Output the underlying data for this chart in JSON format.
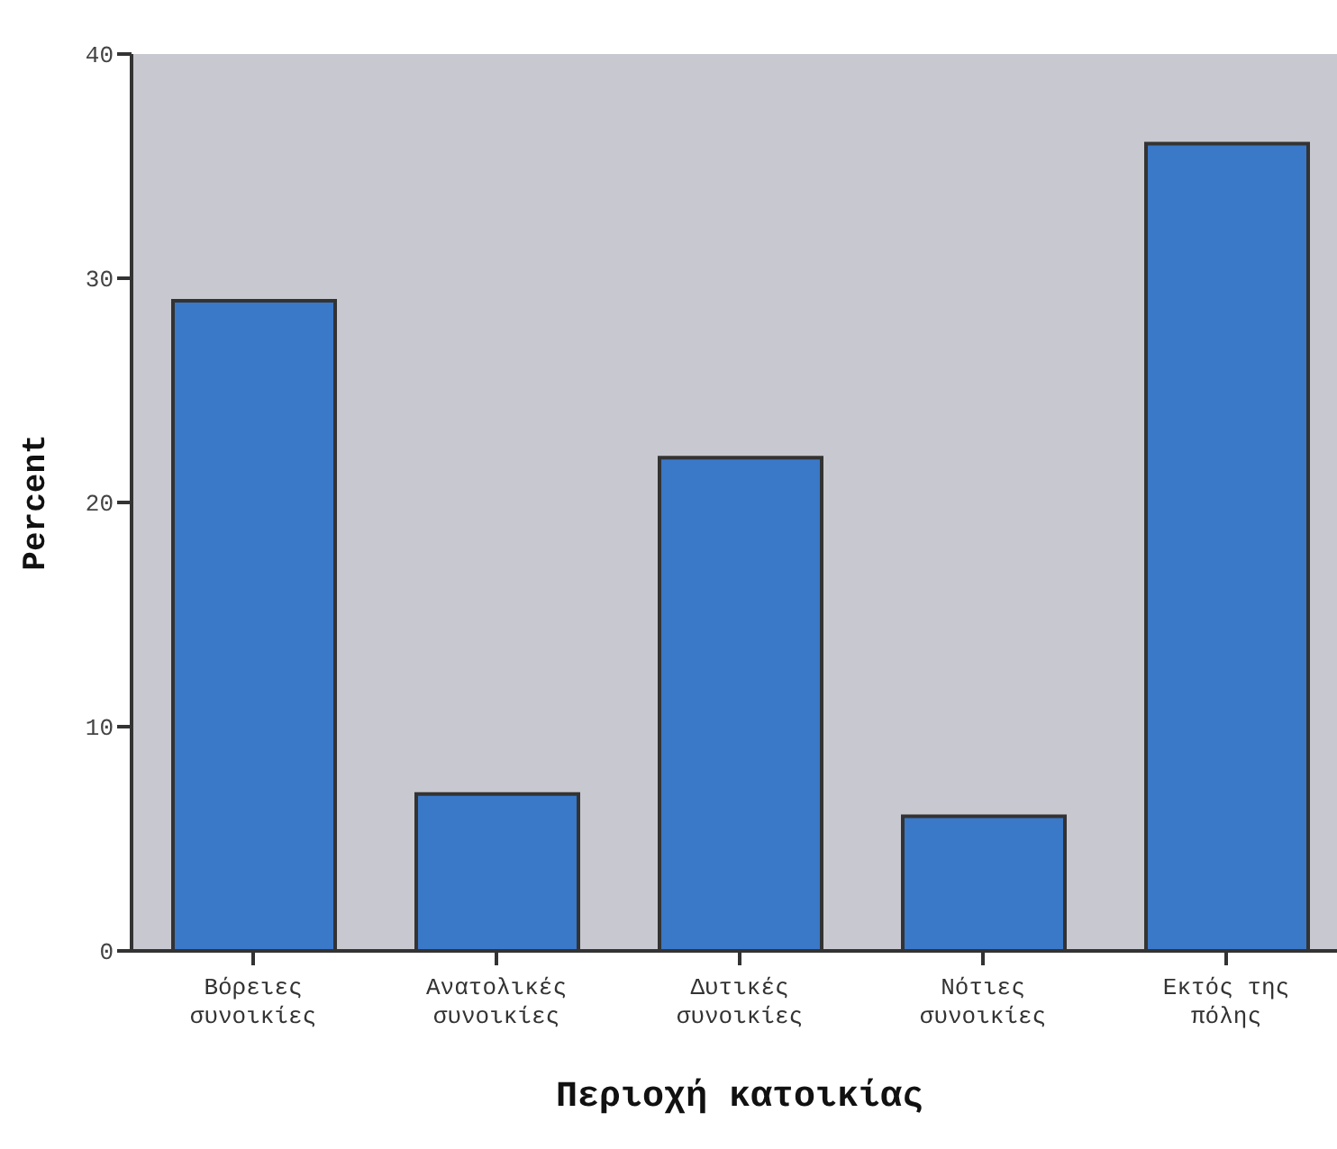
{
  "chart_data": {
    "type": "bar",
    "xlabel": "Περιοχή κατοικίας",
    "ylabel": "Percent",
    "categories": [
      "Βόρειες συνοικίες",
      "Ανατολικές συνοικίες",
      "Δυτικές συνοικίες",
      "Νότιες συνοικίες",
      "Εκτός της πόλης"
    ],
    "values": [
      29,
      7,
      22,
      6,
      36
    ],
    "color": "#3a78c8",
    "ylim": [
      0,
      40
    ],
    "yticks": [
      0,
      10,
      20,
      30,
      40
    ],
    "grid": false
  }
}
